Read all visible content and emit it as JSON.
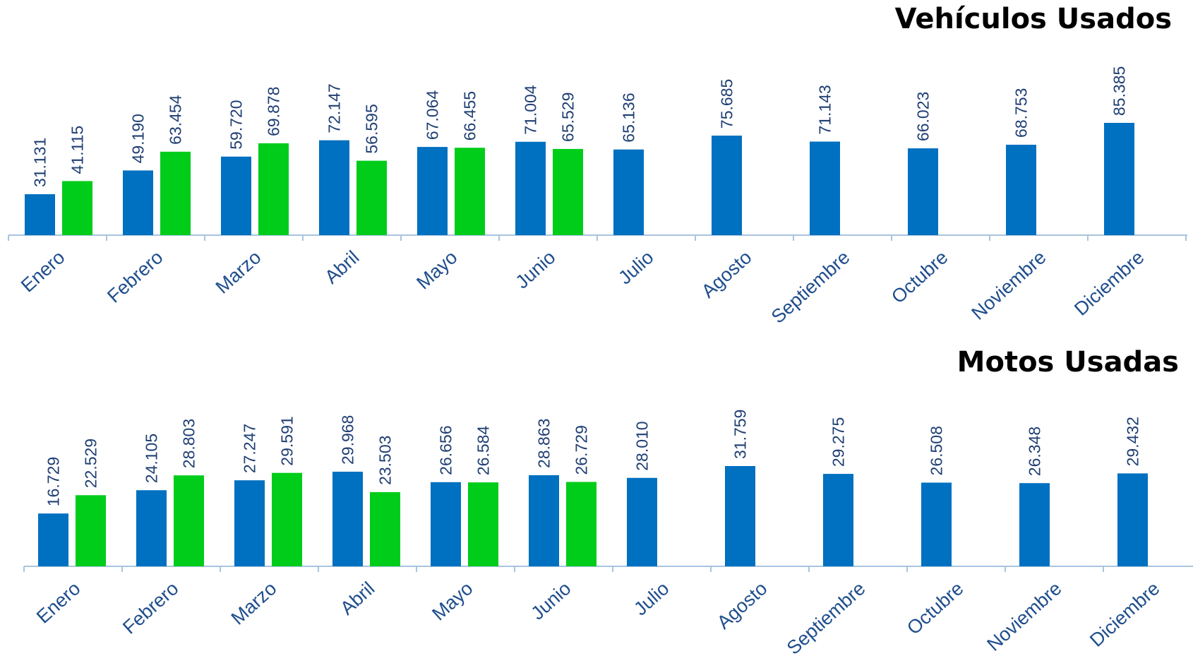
{
  "colors": {
    "series_1": "#0070c0",
    "series_2": "#00cc1a",
    "axis": "#a8c4de",
    "text": "#1f4e8c"
  },
  "chart_data": [
    {
      "type": "bar",
      "title": "Vehículos Usados",
      "categories": [
        "Enero",
        "Febrero",
        "Marzo",
        "Abril",
        "Mayo",
        "Junio",
        "Julio",
        "Agosto",
        "Septiembre",
        "Octubre",
        "Noviembre",
        "Diciembre"
      ],
      "series": [
        {
          "values": [
            31131,
            49190,
            59720,
            72147,
            67064,
            71004,
            65136,
            75685,
            71143,
            66023,
            68753,
            85385
          ],
          "labels": [
            "31.131",
            "49.190",
            "59.720",
            "72.147",
            "67.064",
            "71.004",
            "65.136",
            "75.685",
            "71.143",
            "66.023",
            "68.753",
            "85.385"
          ]
        },
        {
          "values": [
            41115,
            63454,
            69878,
            56595,
            66455,
            65529,
            null,
            null,
            null,
            null,
            null,
            null
          ],
          "labels": [
            "41.115",
            "63.454",
            "69.878",
            "56.595",
            "66.455",
            "65.529",
            "",
            "",
            "",
            "",
            "",
            ""
          ]
        }
      ],
      "ylim": [
        0,
        85385
      ],
      "grid": false,
      "legend": "none"
    },
    {
      "type": "bar",
      "title": "Motos Usadas",
      "categories": [
        "Enero",
        "Febrero",
        "Marzo",
        "Abril",
        "Mayo",
        "Junio",
        "Julio",
        "Agosto",
        "Septiembre",
        "Octubre",
        "Noviembre",
        "Diciembre"
      ],
      "series": [
        {
          "values": [
            16729,
            24105,
            27247,
            29968,
            26656,
            28863,
            28010,
            31759,
            29275,
            26508,
            26348,
            29432
          ],
          "labels": [
            "16.729",
            "24.105",
            "27.247",
            "29.968",
            "26.656",
            "28.863",
            "28.010",
            "31.759",
            "29.275",
            "26.508",
            "26.348",
            "29.432"
          ]
        },
        {
          "values": [
            22529,
            28803,
            29591,
            23503,
            26584,
            26729,
            null,
            null,
            null,
            null,
            null,
            null
          ],
          "labels": [
            "22.529",
            "28.803",
            "29.591",
            "23.503",
            "26.584",
            "26.729",
            "",
            "",
            "",
            "",
            "",
            ""
          ]
        }
      ],
      "ylim": [
        0,
        31759
      ],
      "grid": false,
      "legend": "none"
    }
  ]
}
